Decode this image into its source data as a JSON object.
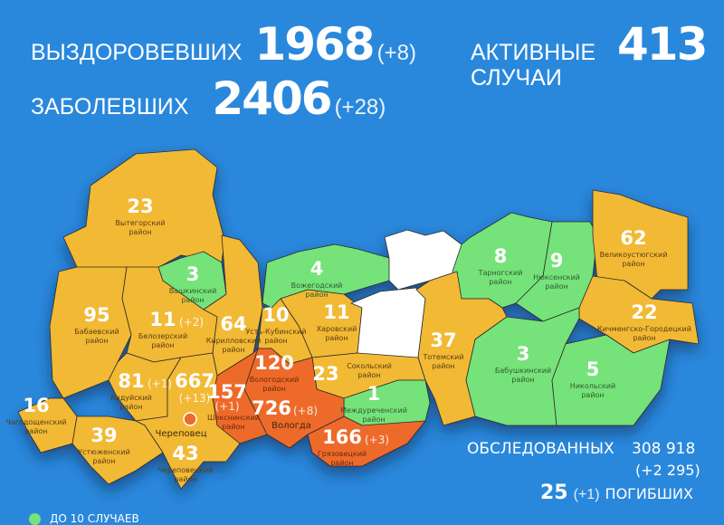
{
  "colors": {
    "background": "#2a88dc",
    "over_10": "#f2b936",
    "up_to_10": "#76e27a",
    "over_100": "#ee6b2c",
    "no_cases": "#ffffff"
  },
  "header": {
    "recovered": {
      "label": "ВЫЗДОРОВЕВШИХ",
      "value": "1968",
      "delta": "(+8)"
    },
    "infected": {
      "label": "ЗАБОЛЕВШИХ",
      "value": "2406",
      "delta": "(+28)"
    },
    "active": {
      "label_line1": "АКТИВНЫЕ",
      "label_line2": "СЛУЧАИ",
      "value": "413"
    }
  },
  "regions": [
    {
      "id": "vytegorsky",
      "name": "Вытегорский район",
      "count": "23",
      "delta": "",
      "category": "over_10"
    },
    {
      "id": "babaevsky",
      "name": "Бабаевский район",
      "count": "95",
      "delta": "",
      "category": "over_10"
    },
    {
      "id": "belozersky",
      "name": "Белозерский район",
      "count": "11",
      "delta": "(+2)",
      "category": "over_10"
    },
    {
      "id": "vashkinsky",
      "name": "Вашкинский район",
      "count": "3",
      "delta": "",
      "category": "up_to_10"
    },
    {
      "id": "kirillovsky",
      "name": "Кирилловский район",
      "count": "64",
      "delta": "",
      "category": "over_10"
    },
    {
      "id": "vozhegodsky",
      "name": "Вожегодский район",
      "count": "4",
      "delta": "",
      "category": "up_to_10"
    },
    {
      "id": "kharovsky",
      "name": "Харовский район",
      "count": "11",
      "delta": "",
      "category": "over_10"
    },
    {
      "id": "ustkubinsky",
      "name": "Усть-Кубинский район",
      "count": "10",
      "delta": "",
      "category": "over_10"
    },
    {
      "id": "white_north",
      "name": "",
      "count": "",
      "delta": "",
      "category": "no_cases"
    },
    {
      "id": "white_south",
      "name": "",
      "count": "",
      "delta": "",
      "category": "no_cases"
    },
    {
      "id": "tarnogsky",
      "name": "Тарногский район",
      "count": "8",
      "delta": "",
      "category": "up_to_10"
    },
    {
      "id": "nyuksensky",
      "name": "Нюксенский район",
      "count": "9",
      "delta": "",
      "category": "up_to_10"
    },
    {
      "id": "velikoustyugsky",
      "name": "Великоустюгский район",
      "count": "62",
      "delta": "",
      "category": "over_10"
    },
    {
      "id": "kichmengsky",
      "name": "Кичменгско-Городецкий район",
      "count": "22",
      "delta": "",
      "category": "over_10"
    },
    {
      "id": "totemsky",
      "name": "Тотемский район",
      "count": "37",
      "delta": "",
      "category": "over_10"
    },
    {
      "id": "babushkinsky",
      "name": "Бабушкинский район",
      "count": "3",
      "delta": "",
      "category": "up_to_10"
    },
    {
      "id": "nikolsky",
      "name": "Никольский район",
      "count": "5",
      "delta": "",
      "category": "up_to_10"
    },
    {
      "id": "sokolsky",
      "name": "Сокольский район",
      "count": "23",
      "delta": "",
      "category": "over_10"
    },
    {
      "id": "mezhdurechensky",
      "name": "Междуреченский район",
      "count": "1",
      "delta": "",
      "category": "up_to_10"
    },
    {
      "id": "gryazovetsky",
      "name": "Грязовецкий район",
      "count": "166",
      "delta": "(+3)",
      "category": "over_100"
    },
    {
      "id": "vologodsky",
      "name": "Вологодский район",
      "count": "120",
      "delta": "",
      "category": "over_100"
    },
    {
      "id": "sheksninsky",
      "name": "Шекснинский район",
      "count": "157",
      "delta": "(+1)",
      "category": "over_100"
    },
    {
      "id": "kaduysky",
      "name": "Кадуйский район",
      "count": "81",
      "delta": "(+1)",
      "category": "over_10"
    },
    {
      "id": "cherepovetsky",
      "name": "Череповецкий район",
      "count": "43",
      "delta": "",
      "category": "over_10"
    },
    {
      "id": "chagodoshchensky",
      "name": "Чагодощенский район",
      "count": "16",
      "delta": "",
      "category": "over_10"
    },
    {
      "id": "ustyuzhensky",
      "name": "Устюженский район",
      "count": "39",
      "delta": "",
      "category": "over_10"
    }
  ],
  "cities": [
    {
      "id": "cherepovets",
      "name": "Череповец",
      "count": "667",
      "delta": "(+13)"
    },
    {
      "id": "vologda",
      "name": "Вологда",
      "count": "726",
      "delta": "(+8)"
    }
  ],
  "footer": {
    "tested": {
      "label": "ОБСЛЕДОВАННЫХ",
      "value": "308 918",
      "delta": "(+2 295)"
    },
    "deaths": {
      "value": "25",
      "delta": "(+1)",
      "label": "ПОГИБШИХ"
    }
  },
  "legend": [
    {
      "label": "ДО 10 СЛУЧАЕВ",
      "category": "up_to_10"
    }
  ]
}
